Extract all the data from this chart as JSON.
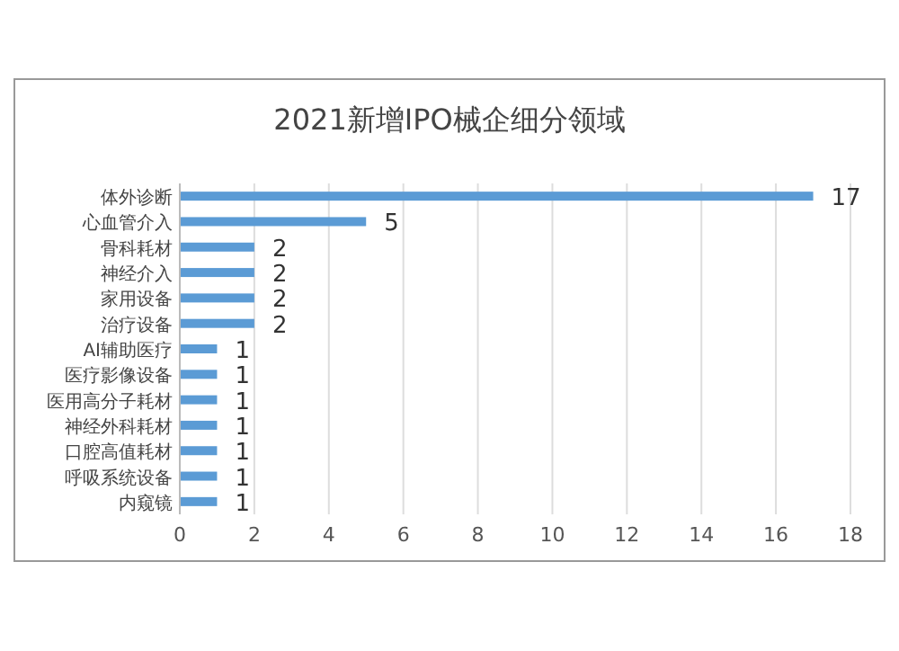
{
  "chart_data": {
    "type": "bar",
    "orientation": "horizontal",
    "title": "2021新增IPO械企细分领域",
    "categories": [
      "体外诊断",
      "心血管介入",
      "骨科耗材",
      "神经介入",
      "家用设备",
      "治疗设备",
      "AI辅助医疗",
      "医疗影像设备",
      "医用高分子耗材",
      "神经外科耗材",
      "口腔高值耗材",
      "呼吸系统设备",
      "内窥镜"
    ],
    "values": [
      17,
      5,
      2,
      2,
      2,
      2,
      1,
      1,
      1,
      1,
      1,
      1,
      1
    ],
    "color": "#5b9bd5",
    "data_labels": true,
    "xlim": [
      0,
      18
    ],
    "xticks": [
      0,
      2,
      4,
      6,
      8,
      10,
      12,
      14,
      16,
      18
    ],
    "grid": "x"
  }
}
